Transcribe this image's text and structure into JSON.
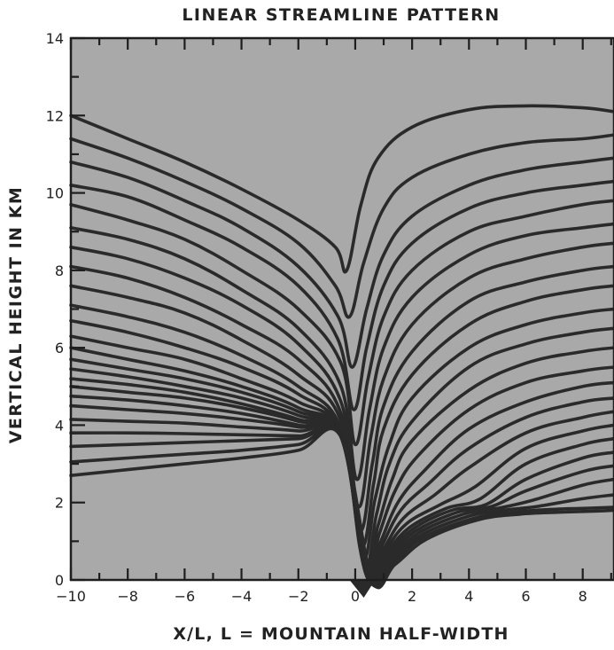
{
  "chart_data": {
    "type": "line",
    "title": "LINEAR STREAMLINE PATTERN",
    "xlabel": "X/L, L = MOUNTAIN HALF-WIDTH",
    "ylabel": "VERTICAL HEIGHT IN KM",
    "xlim": [
      -10,
      9.1
    ],
    "ylim": [
      0,
      14
    ],
    "xticks": [
      -10,
      -8,
      -6,
      -4,
      -2,
      0,
      2,
      4,
      6,
      8
    ],
    "xtick_labels": [
      "−10",
      "−8",
      "−6",
      "−4",
      "−2",
      "0",
      "2",
      "4",
      "6",
      "8"
    ],
    "yticks": [
      0,
      2,
      4,
      6,
      8,
      10,
      12,
      14
    ],
    "ytick_labels": [
      "0",
      "2",
      "4",
      "6",
      "8",
      "10",
      "12",
      "14"
    ],
    "grid": false,
    "colors": {
      "plot_background": "#a9a9a9",
      "line": "#2a2a2a",
      "frame": "#1e1e1e"
    },
    "series": [
      {
        "x": [
          -10,
          -8,
          -6,
          -4,
          -2,
          -0.7,
          -0.3,
          0.2,
          0.8,
          2,
          4,
          6,
          8,
          9.1
        ],
        "values": [
          12.0,
          11.4,
          10.8,
          10.1,
          9.3,
          8.6,
          8.0,
          9.7,
          10.9,
          11.7,
          12.15,
          12.25,
          12.2,
          12.1
        ]
      },
      {
        "x": [
          -10,
          -8,
          -6,
          -4,
          -2,
          -0.7,
          -0.2,
          0.3,
          1,
          2,
          4,
          6,
          8,
          9.1
        ],
        "values": [
          11.4,
          10.9,
          10.3,
          9.6,
          8.7,
          7.6,
          6.8,
          8.2,
          9.6,
          10.4,
          11.0,
          11.3,
          11.4,
          11.5
        ]
      },
      {
        "x": [
          -10,
          -8,
          -6,
          -4,
          -2,
          -0.6,
          -0.1,
          0.4,
          1,
          2,
          4,
          6,
          8,
          9.1
        ],
        "values": [
          10.8,
          10.4,
          9.8,
          9.1,
          8.1,
          6.8,
          5.5,
          7.0,
          8.4,
          9.4,
          10.2,
          10.6,
          10.8,
          10.9
        ]
      },
      {
        "x": [
          -10,
          -8,
          -6,
          -4,
          -2,
          -0.6,
          -0.05,
          0.4,
          1,
          2,
          4,
          6,
          8,
          9.1
        ],
        "values": [
          10.2,
          9.9,
          9.3,
          8.6,
          7.6,
          6.2,
          4.4,
          6.0,
          7.6,
          8.7,
          9.6,
          10.0,
          10.2,
          10.3
        ]
      },
      {
        "x": [
          -10,
          -8,
          -6,
          -4,
          -2,
          -0.5,
          0.0,
          0.45,
          1,
          2,
          4,
          6,
          8,
          9.1
        ],
        "values": [
          9.7,
          9.3,
          8.8,
          8.0,
          7.0,
          5.6,
          3.5,
          5.2,
          6.8,
          8.0,
          9.0,
          9.4,
          9.7,
          9.8
        ]
      },
      {
        "x": [
          -10,
          -8,
          -6,
          -4,
          -2,
          -0.5,
          0.05,
          0.5,
          1,
          2,
          4,
          6,
          8,
          9.1
        ],
        "values": [
          9.1,
          8.8,
          8.3,
          7.5,
          6.5,
          5.0,
          2.6,
          4.4,
          6.0,
          7.3,
          8.4,
          8.9,
          9.1,
          9.2
        ]
      },
      {
        "x": [
          -10,
          -8,
          -6,
          -4,
          -2,
          -0.5,
          0.1,
          0.55,
          1,
          2,
          4,
          6,
          8,
          9.1
        ],
        "values": [
          8.6,
          8.3,
          7.8,
          7.1,
          6.1,
          4.6,
          1.9,
          3.7,
          5.2,
          6.6,
          7.8,
          8.3,
          8.6,
          8.7
        ]
      },
      {
        "x": [
          -10,
          -8,
          -6,
          -4,
          -2,
          -0.5,
          0.15,
          0.6,
          1,
          2,
          4,
          6,
          8,
          9.1
        ],
        "values": [
          8.1,
          7.8,
          7.3,
          6.6,
          5.7,
          4.3,
          1.3,
          3.0,
          4.5,
          5.9,
          7.2,
          7.7,
          8.0,
          8.1
        ]
      },
      {
        "x": [
          -10,
          -8,
          -6,
          -4,
          -2,
          -0.5,
          0.2,
          0.65,
          1,
          2,
          4,
          6,
          8,
          9.1
        ],
        "values": [
          7.6,
          7.3,
          6.9,
          6.2,
          5.3,
          4.1,
          0.9,
          2.5,
          3.9,
          5.3,
          6.6,
          7.2,
          7.5,
          7.6
        ]
      },
      {
        "x": [
          -10,
          -8,
          -6,
          -4,
          -2,
          -0.5,
          0.25,
          0.7,
          1.2,
          2,
          4,
          6,
          8,
          9.1
        ],
        "values": [
          7.1,
          6.8,
          6.4,
          5.8,
          5.0,
          3.9,
          0.6,
          2.1,
          3.5,
          4.7,
          6.0,
          6.6,
          6.9,
          7.0
        ]
      },
      {
        "x": [
          -10,
          -8,
          -6,
          -4,
          -2,
          -0.5,
          0.3,
          0.75,
          1.2,
          2,
          4,
          6,
          8,
          9.1
        ],
        "values": [
          6.7,
          6.4,
          6.0,
          5.5,
          4.8,
          3.8,
          0.4,
          1.7,
          3.0,
          4.1,
          5.5,
          6.1,
          6.4,
          6.5
        ]
      },
      {
        "x": [
          -10,
          -8,
          -6,
          -4,
          -2,
          -0.5,
          0.33,
          0.8,
          1.3,
          2,
          4,
          6,
          8,
          9.1
        ],
        "values": [
          6.3,
          6.0,
          5.7,
          5.2,
          4.6,
          3.75,
          0.3,
          1.4,
          2.6,
          3.6,
          4.9,
          5.6,
          5.9,
          6.0
        ]
      },
      {
        "x": [
          -10,
          -8,
          -6,
          -4,
          -2,
          -0.5,
          0.36,
          0.85,
          1.4,
          2.2,
          4,
          6,
          8,
          9.1
        ],
        "values": [
          6.0,
          5.7,
          5.4,
          5.0,
          4.45,
          3.7,
          0.2,
          1.2,
          2.3,
          3.2,
          4.4,
          5.1,
          5.4,
          5.5
        ]
      },
      {
        "x": [
          -10,
          -8,
          -6,
          -4,
          -2,
          -0.5,
          0.38,
          0.9,
          1.5,
          2.4,
          4,
          6,
          8,
          9.1
        ],
        "values": [
          5.7,
          5.45,
          5.2,
          4.85,
          4.35,
          3.7,
          0.15,
          1.0,
          2.0,
          2.8,
          3.9,
          4.6,
          5.0,
          5.1
        ]
      },
      {
        "x": [
          -10,
          -8,
          -6,
          -4,
          -2,
          -0.5,
          0.4,
          0.95,
          1.6,
          2.6,
          4,
          6,
          8,
          9.1
        ],
        "values": [
          5.45,
          5.25,
          5.0,
          4.7,
          4.25,
          3.7,
          0.1,
          0.9,
          1.8,
          2.5,
          3.4,
          4.2,
          4.6,
          4.7
        ]
      },
      {
        "x": [
          -10,
          -8,
          -6,
          -4,
          -2,
          -0.5,
          0.42,
          1.0,
          1.7,
          2.8,
          4,
          6,
          8,
          9.1
        ],
        "values": [
          5.2,
          5.05,
          4.85,
          4.55,
          4.15,
          3.7,
          0.08,
          0.8,
          1.6,
          2.2,
          2.9,
          3.8,
          4.2,
          4.35
        ]
      },
      {
        "x": [
          -10,
          -8,
          -6,
          -4,
          -2,
          -0.5,
          0.44,
          1.05,
          1.8,
          3.0,
          4.2,
          6,
          8,
          9.1
        ],
        "values": [
          5.0,
          4.85,
          4.7,
          4.45,
          4.1,
          3.7,
          0.06,
          0.75,
          1.45,
          1.95,
          2.4,
          3.4,
          3.85,
          4.0
        ]
      },
      {
        "x": [
          -10,
          -8,
          -6,
          -4,
          -2,
          -0.5,
          0.46,
          1.1,
          1.9,
          3.2,
          4.4,
          6,
          8,
          9.1
        ],
        "values": [
          4.75,
          4.65,
          4.5,
          4.3,
          4.0,
          3.7,
          0.05,
          0.7,
          1.35,
          1.85,
          2.1,
          3.0,
          3.5,
          3.65
        ]
      },
      {
        "x": [
          -10,
          -8,
          -6,
          -4,
          -2,
          -0.5,
          0.48,
          1.15,
          2.0,
          3.4,
          4.6,
          6,
          8,
          9.1
        ],
        "values": [
          4.5,
          4.4,
          4.3,
          4.15,
          3.95,
          3.7,
          0.04,
          0.65,
          1.3,
          1.8,
          1.95,
          2.6,
          3.15,
          3.3
        ]
      },
      {
        "x": [
          -10,
          -8,
          -6,
          -4,
          -2,
          -0.5,
          0.5,
          1.2,
          2.1,
          3.6,
          4.8,
          6,
          8,
          9.1
        ],
        "values": [
          4.15,
          4.1,
          4.05,
          3.95,
          3.85,
          3.7,
          0.03,
          0.6,
          1.25,
          1.75,
          1.9,
          2.3,
          2.8,
          2.95
        ]
      },
      {
        "x": [
          -10,
          -8,
          -6,
          -4,
          -2,
          -0.5,
          0.52,
          1.25,
          2.2,
          3.8,
          5.0,
          6.2,
          8,
          9.1
        ],
        "values": [
          3.8,
          3.8,
          3.78,
          3.75,
          3.72,
          3.7,
          0.03,
          0.55,
          1.2,
          1.7,
          1.85,
          2.05,
          2.45,
          2.6
        ]
      },
      {
        "x": [
          -10,
          -8,
          -6,
          -4,
          -2,
          -0.5,
          0.54,
          1.3,
          2.3,
          4.0,
          5.2,
          6.4,
          8,
          9.1
        ],
        "values": [
          3.45,
          3.5,
          3.55,
          3.6,
          3.65,
          3.7,
          0.02,
          0.5,
          1.15,
          1.65,
          1.8,
          1.9,
          2.1,
          2.2
        ]
      },
      {
        "x": [
          -10,
          -8,
          -6,
          -4,
          -2,
          -0.5,
          0.56,
          1.35,
          2.4,
          4.2,
          5.5,
          6.8,
          8,
          9.1
        ],
        "values": [
          3.05,
          3.15,
          3.25,
          3.35,
          3.5,
          3.7,
          0.02,
          0.45,
          1.1,
          1.6,
          1.75,
          1.82,
          1.85,
          1.88
        ]
      },
      {
        "x": [
          -10,
          -8,
          -6,
          -4,
          -2,
          -0.5,
          0.58,
          1.4,
          2.5,
          4.3,
          5.8,
          7.2,
          8.5,
          9.1
        ],
        "values": [
          2.7,
          2.85,
          3.0,
          3.15,
          3.35,
          3.7,
          0.02,
          0.4,
          1.05,
          1.55,
          1.7,
          1.75,
          1.78,
          1.8
        ]
      }
    ]
  }
}
